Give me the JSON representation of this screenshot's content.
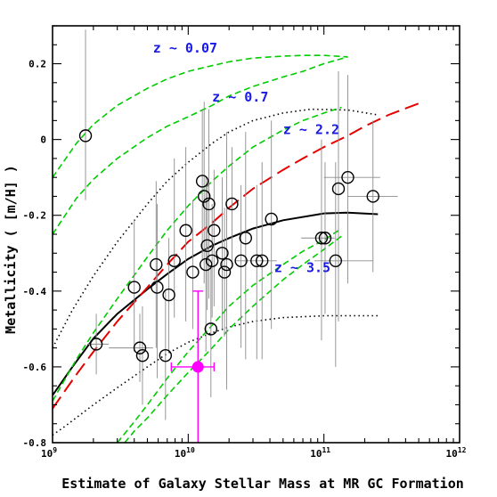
{
  "chart_data": {
    "type": "scatter",
    "title": "",
    "xlabel": "Estimate of Galaxy Stellar Mass at MR GC Formation",
    "ylabel": "Metallicity ( [m/H] )",
    "x_scale": "log",
    "xlim": [
      1000000000.0,
      1000000000000.0
    ],
    "ylim": [
      -0.8,
      0.3
    ],
    "grid": false,
    "x_ticks": [
      {
        "value": 1000000000.0,
        "base": "10",
        "exp": "9"
      },
      {
        "value": 10000000000.0,
        "base": "10",
        "exp": "10"
      },
      {
        "value": 100000000000.0,
        "base": "10",
        "exp": "11"
      },
      {
        "value": 1000000000000.0,
        "base": "10",
        "exp": "12"
      }
    ],
    "y_ticks": [
      {
        "value": 0.2,
        "label": "0.2"
      },
      {
        "value": 0,
        "label": "0"
      },
      {
        "value": -0.2,
        "label": "-0.2"
      },
      {
        "value": -0.4,
        "label": "-0.4"
      },
      {
        "value": -0.6,
        "label": "-0.6"
      },
      {
        "value": -0.8,
        "label": "-0.8"
      }
    ],
    "annotations": [
      {
        "text": "z ~ 0.07",
        "x": 5500000000.0,
        "y": 0.23
      },
      {
        "text": "z ~ 0.7",
        "x": 15000000000.0,
        "y": 0.1
      },
      {
        "text": "z ~ 2.2",
        "x": 50000000000.0,
        "y": 0.015
      },
      {
        "text": "z ~ 3.5",
        "x": 43000000000.0,
        "y": -0.35
      }
    ],
    "colors": {
      "points": "#000000",
      "errorbars": "#8c8c8c",
      "fit": "#000000",
      "red_model": "#e60000",
      "green_models": "#00cc00",
      "highlight": "#ff00ff",
      "labels": "#1a1ae6"
    },
    "series": [
      {
        "name": "",
        "kind": "points",
        "points": [
          {
            "x": 1750000000.0,
            "y": 0.01,
            "ylo": -0.16,
            "yhi": 0.29
          },
          {
            "x": 2100000000.0,
            "y": -0.54,
            "xlo": 1800000000.0,
            "xhi": 2600000000.0,
            "ylo": -0.62,
            "yhi": -0.46
          },
          {
            "x": 4000000000.0,
            "y": -0.39,
            "ylo": -0.56,
            "yhi": -0.21
          },
          {
            "x": 4400000000.0,
            "y": -0.55,
            "xlo": 2600000000.0,
            "xhi": 5500000000.0,
            "ylo": -0.64,
            "yhi": -0.46
          },
          {
            "x": 4600000000.0,
            "y": -0.57,
            "ylo": -0.7,
            "yhi": -0.44
          },
          {
            "x": 5800000000.0,
            "y": -0.33,
            "ylo": -0.55,
            "yhi": -0.11
          },
          {
            "x": 5900000000.0,
            "y": -0.39,
            "ylo": -0.63,
            "yhi": -0.17
          },
          {
            "x": 6800000000.0,
            "y": -0.57,
            "ylo": -0.74,
            "yhi": -0.4
          },
          {
            "x": 7200000000.0,
            "y": -0.41,
            "ylo": -0.56,
            "yhi": -0.26
          },
          {
            "x": 7900000000.0,
            "y": -0.32,
            "ylo": -0.47,
            "yhi": -0.05
          },
          {
            "x": 9600000000.0,
            "y": -0.24,
            "ylo": -0.48,
            "yhi": -0.02
          },
          {
            "x": 10800000000.0,
            "y": -0.35,
            "ylo": -0.5,
            "yhi": -0.16
          },
          {
            "x": 12700000000.0,
            "y": -0.11,
            "ylo": -0.32,
            "yhi": 0.08
          },
          {
            "x": 13100000000.0,
            "y": -0.15,
            "ylo": -0.38,
            "yhi": 0.1
          },
          {
            "x": 13500000000.0,
            "y": -0.33,
            "ylo": -0.56,
            "yhi": -0.1
          },
          {
            "x": 13800000000.0,
            "y": -0.28,
            "ylo": -0.45,
            "yhi": -0.12
          },
          {
            "x": 14200000000.0,
            "y": -0.17,
            "ylo": -0.42,
            "yhi": 0.08
          },
          {
            "x": 14700000000.0,
            "y": -0.5,
            "ylo": -0.68,
            "yhi": -0.33
          },
          {
            "x": 15000000000.0,
            "y": -0.32,
            "ylo": -0.47,
            "yhi": -0.17
          },
          {
            "x": 15500000000.0,
            "y": -0.24,
            "ylo": -0.44,
            "yhi": -0.08
          },
          {
            "x": 17800000000.0,
            "y": -0.3,
            "ylo": -0.5,
            "yhi": -0.1
          },
          {
            "x": 18500000000.0,
            "y": -0.35,
            "ylo": -0.52,
            "yhi": -0.18
          },
          {
            "x": 19200000000.0,
            "y": -0.33,
            "ylo": -0.66,
            "yhi": 0.02
          },
          {
            "x": 21000000000.0,
            "y": -0.17,
            "ylo": -0.33,
            "yhi": -0.02
          },
          {
            "x": 24500000000.0,
            "y": -0.32,
            "ylo": -0.55,
            "yhi": -0.12
          },
          {
            "x": 26500000000.0,
            "y": -0.26,
            "ylo": -0.58,
            "yhi": 0.02
          },
          {
            "x": 32000000000.0,
            "y": -0.32,
            "ylo": -0.58,
            "yhi": -0.12
          },
          {
            "x": 35000000000.0,
            "y": -0.32,
            "xlo": 22000000000.0,
            "xhi": 45000000000.0,
            "ylo": -0.58,
            "yhi": -0.06
          },
          {
            "x": 41000000000.0,
            "y": -0.21,
            "ylo": -0.5,
            "yhi": 0.05
          },
          {
            "x": 96000000000.0,
            "y": -0.26,
            "ylo": -0.53,
            "yhi": 0.0
          },
          {
            "x": 102000000000.0,
            "y": -0.26,
            "xlo": 68000000000.0,
            "xhi": 120000000000.0,
            "ylo": -0.46,
            "yhi": -0.06
          },
          {
            "x": 122000000000.0,
            "y": -0.32,
            "xlo": 85000000000.0,
            "xhi": 230000000000.0,
            "ylo": -0.6,
            "yhi": -0.06
          },
          {
            "x": 128000000000.0,
            "y": -0.13,
            "ylo": -0.48,
            "yhi": 0.18
          },
          {
            "x": 150000000000.0,
            "y": -0.1,
            "xlo": 100000000000.0,
            "xhi": 260000000000.0,
            "ylo": -0.38,
            "yhi": 0.17
          },
          {
            "x": 230000000000.0,
            "y": -0.15,
            "xlo": 150000000000.0,
            "xhi": 350000000000.0,
            "ylo": -0.35,
            "yhi": 0.05
          }
        ]
      },
      {
        "name": "",
        "kind": "highlight",
        "points": [
          {
            "x": 11800000000.0,
            "y": -0.6,
            "xlo": 7500000000.0,
            "xhi": 15500000000.0,
            "ylo": -0.8,
            "yhi": -0.4
          }
        ]
      },
      {
        "name": "",
        "kind": "curve",
        "style": "solid",
        "points": [
          [
            1000000000.0,
            -0.675
          ],
          [
            1400000000.0,
            -0.6
          ],
          [
            2000000000.0,
            -0.525
          ],
          [
            3000000000.0,
            -0.46
          ],
          [
            5000000000.0,
            -0.395
          ],
          [
            7000000000.0,
            -0.355
          ],
          [
            10000000000.0,
            -0.315
          ],
          [
            15000000000.0,
            -0.28
          ],
          [
            20000000000.0,
            -0.26
          ],
          [
            30000000000.0,
            -0.235
          ],
          [
            50000000000.0,
            -0.213
          ],
          [
            100000000000.0,
            -0.195
          ],
          [
            150000000000.0,
            -0.193
          ],
          [
            250000000000.0,
            -0.197
          ]
        ]
      },
      {
        "name": "",
        "kind": "curve",
        "style": "dotted",
        "points": [
          [
            1000000000.0,
            -0.55
          ],
          [
            1400000000.0,
            -0.45
          ],
          [
            2000000000.0,
            -0.36
          ],
          [
            3000000000.0,
            -0.27
          ],
          [
            5000000000.0,
            -0.17
          ],
          [
            7000000000.0,
            -0.11
          ],
          [
            10000000000.0,
            -0.06
          ],
          [
            15000000000.0,
            -0.01
          ],
          [
            20000000000.0,
            0.02
          ],
          [
            30000000000.0,
            0.05
          ],
          [
            50000000000.0,
            0.07
          ],
          [
            80000000000.0,
            0.08
          ],
          [
            150000000000.0,
            0.078
          ],
          [
            250000000000.0,
            0.065
          ]
        ]
      },
      {
        "name": "",
        "kind": "curve",
        "style": "dotted",
        "points": [
          [
            1000000000.0,
            -0.78
          ],
          [
            1200000000.0,
            -0.76
          ],
          [
            2000000000.0,
            -0.7
          ],
          [
            3000000000.0,
            -0.655
          ],
          [
            5000000000.0,
            -0.6
          ],
          [
            7000000000.0,
            -0.565
          ],
          [
            10000000000.0,
            -0.535
          ],
          [
            15000000000.0,
            -0.51
          ],
          [
            20000000000.0,
            -0.495
          ],
          [
            30000000000.0,
            -0.48
          ],
          [
            50000000000.0,
            -0.47
          ],
          [
            100000000000.0,
            -0.465
          ],
          [
            250000000000.0,
            -0.465
          ]
        ]
      },
      {
        "name": "",
        "kind": "curve",
        "style": "longdash",
        "color": "red",
        "points": [
          [
            1000000000.0,
            -0.71
          ],
          [
            1500000000.0,
            -0.62
          ],
          [
            2000000000.0,
            -0.56
          ],
          [
            3000000000.0,
            -0.48
          ],
          [
            5000000000.0,
            -0.39
          ],
          [
            7000000000.0,
            -0.33
          ],
          [
            10000000000.0,
            -0.27
          ],
          [
            15000000000.0,
            -0.22
          ],
          [
            20000000000.0,
            -0.18
          ],
          [
            30000000000.0,
            -0.13
          ],
          [
            50000000000.0,
            -0.08
          ],
          [
            70000000000.0,
            -0.05
          ],
          [
            100000000000.0,
            -0.02
          ],
          [
            150000000000.0,
            0.01
          ],
          [
            200000000000.0,
            0.035
          ],
          [
            300000000000.0,
            0.065
          ],
          [
            500000000000.0,
            0.095
          ]
        ]
      },
      {
        "name": "",
        "kind": "curve",
        "style": "dashed",
        "color": "green",
        "points": [
          [
            1000000000.0,
            -0.1
          ],
          [
            1500000000.0,
            -0.01
          ],
          [
            2000000000.0,
            0.04
          ],
          [
            3000000000.0,
            0.09
          ],
          [
            5000000000.0,
            0.135
          ],
          [
            7000000000.0,
            0.16
          ],
          [
            10000000000.0,
            0.18
          ],
          [
            15000000000.0,
            0.195
          ],
          [
            20000000000.0,
            0.205
          ],
          [
            30000000000.0,
            0.215
          ],
          [
            50000000000.0,
            0.22
          ],
          [
            70000000000.0,
            0.222
          ],
          [
            100000000000.0,
            0.222
          ],
          [
            150000000000.0,
            0.218
          ]
        ]
      },
      {
        "name": "",
        "kind": "curve",
        "style": "dashed",
        "color": "green",
        "points": [
          [
            1000000000.0,
            -0.25
          ],
          [
            1500000000.0,
            -0.155
          ],
          [
            2000000000.0,
            -0.105
          ],
          [
            3000000000.0,
            -0.05
          ],
          [
            5000000000.0,
            0.005
          ],
          [
            7000000000.0,
            0.035
          ],
          [
            10000000000.0,
            0.06
          ],
          [
            15000000000.0,
            0.09
          ],
          [
            20000000000.0,
            0.115
          ],
          [
            30000000000.0,
            0.14
          ],
          [
            50000000000.0,
            0.165
          ],
          [
            70000000000.0,
            0.18
          ],
          [
            100000000000.0,
            0.2
          ],
          [
            150000000000.0,
            0.218
          ]
        ]
      },
      {
        "name": "",
        "kind": "curve",
        "style": "dashed",
        "color": "green",
        "points": [
          [
            1000000000.0,
            -0.69
          ],
          [
            1500000000.0,
            -0.58
          ],
          [
            2000000000.0,
            -0.51
          ],
          [
            3000000000.0,
            -0.42
          ],
          [
            5000000000.0,
            -0.31
          ],
          [
            7000000000.0,
            -0.24
          ],
          [
            10000000000.0,
            -0.175
          ],
          [
            15000000000.0,
            -0.11
          ],
          [
            20000000000.0,
            -0.07
          ],
          [
            30000000000.0,
            -0.02
          ],
          [
            50000000000.0,
            0.025
          ],
          [
            70000000000.0,
            0.05
          ],
          [
            100000000000.0,
            0.07
          ],
          [
            135000000000.0,
            0.085
          ]
        ]
      },
      {
        "name": "",
        "kind": "curve",
        "style": "dashed",
        "color": "green",
        "points": [
          [
            3000000000.0,
            -0.8
          ],
          [
            4000000000.0,
            -0.745
          ],
          [
            5000000000.0,
            -0.7
          ],
          [
            7000000000.0,
            -0.63
          ],
          [
            10000000000.0,
            -0.56
          ],
          [
            15000000000.0,
            -0.49
          ],
          [
            20000000000.0,
            -0.44
          ],
          [
            30000000000.0,
            -0.385
          ],
          [
            50000000000.0,
            -0.33
          ],
          [
            70000000000.0,
            -0.295
          ],
          [
            100000000000.0,
            -0.265
          ],
          [
            135000000000.0,
            -0.235
          ]
        ]
      },
      {
        "name": "",
        "kind": "curve",
        "style": "dashed",
        "color": "green",
        "points": [
          [
            3400000000.0,
            -0.8
          ],
          [
            4000000000.0,
            -0.77
          ],
          [
            5000000000.0,
            -0.735
          ],
          [
            7000000000.0,
            -0.675
          ],
          [
            10000000000.0,
            -0.615
          ],
          [
            15000000000.0,
            -0.55
          ],
          [
            20000000000.0,
            -0.5
          ],
          [
            30000000000.0,
            -0.44
          ],
          [
            50000000000.0,
            -0.37
          ],
          [
            70000000000.0,
            -0.33
          ],
          [
            100000000000.0,
            -0.29
          ],
          [
            135000000000.0,
            -0.255
          ]
        ]
      }
    ]
  }
}
